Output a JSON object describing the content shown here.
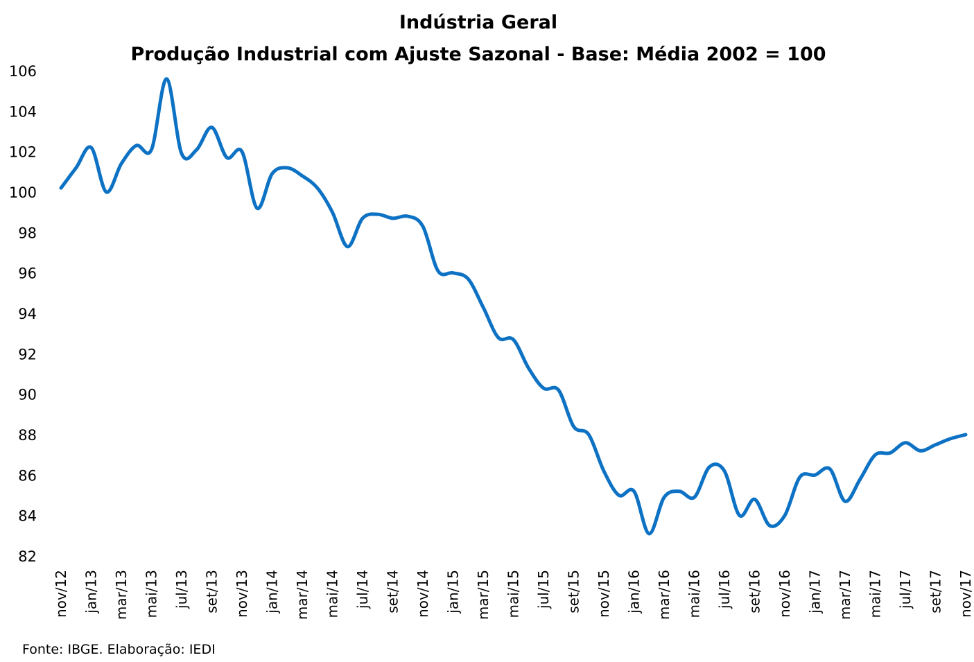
{
  "chart_data": {
    "type": "line",
    "title": "Indústria Geral",
    "subtitle": "Produção Industrial com Ajuste Sazonal - Base: Média 2002 = 100",
    "xlabel": "",
    "ylabel": "",
    "ylim": [
      82,
      106
    ],
    "yticks": [
      82,
      84,
      86,
      88,
      90,
      92,
      94,
      96,
      98,
      100,
      102,
      104,
      106
    ],
    "x_tick_labels": [
      "nov/12",
      "jan/13",
      "mar/13",
      "mai/13",
      "jul/13",
      "set/13",
      "nov/13",
      "jan/14",
      "mar/14",
      "mai/14",
      "jul/14",
      "set/14",
      "nov/14",
      "jan/15",
      "mar/15",
      "mai/15",
      "jul/15",
      "set/15",
      "nov/15",
      "jan/16",
      "mar/16",
      "mai/16",
      "jul/16",
      "set/16",
      "nov/16",
      "jan/17",
      "mar/17",
      "mai/17",
      "jul/17",
      "set/17",
      "nov/17"
    ],
    "grid": false,
    "legend": "none",
    "series": [
      {
        "color": "#0e72c4",
        "x": [
          "nov/12",
          "dez/12",
          "jan/13",
          "fev/13",
          "mar/13",
          "abr/13",
          "mai/13",
          "jun/13",
          "jul/13",
          "ago/13",
          "set/13",
          "out/13",
          "nov/13",
          "dez/13",
          "jan/14",
          "fev/14",
          "mar/14",
          "abr/14",
          "mai/14",
          "jun/14",
          "jul/14",
          "ago/14",
          "set/14",
          "out/14",
          "nov/14",
          "dez/14",
          "jan/15",
          "fev/15",
          "mar/15",
          "abr/15",
          "mai/15",
          "jun/15",
          "jul/15",
          "ago/15",
          "set/15",
          "out/15",
          "nov/15",
          "dez/15",
          "jan/16",
          "fev/16",
          "mar/16",
          "abr/16",
          "mai/16",
          "jun/16",
          "jul/16",
          "ago/16",
          "set/16",
          "out/16",
          "nov/16",
          "dez/16",
          "jan/17",
          "fev/17",
          "mar/17",
          "abr/17",
          "mai/17",
          "jun/17",
          "jul/17",
          "ago/17",
          "set/17",
          "out/17",
          "nov/17"
        ],
        "values": [
          100.2,
          101.2,
          102.2,
          100.0,
          101.4,
          102.3,
          102.1,
          105.6,
          101.9,
          102.1,
          103.2,
          101.7,
          102.0,
          99.2,
          100.9,
          101.2,
          100.8,
          100.2,
          99.0,
          97.3,
          98.7,
          98.9,
          98.7,
          98.8,
          98.3,
          96.1,
          96.0,
          95.7,
          94.3,
          92.8,
          92.7,
          91.3,
          90.3,
          90.2,
          88.4,
          88.0,
          86.2,
          85.0,
          85.2,
          83.1,
          84.9,
          85.2,
          84.9,
          86.4,
          86.2,
          84.0,
          84.8,
          83.5,
          84.0,
          85.9,
          86.0,
          86.3,
          84.7,
          85.8,
          87.0,
          87.1,
          87.6,
          87.2,
          87.5,
          87.8,
          88.0
        ]
      }
    ]
  },
  "source": "Fonte: IBGE. Elaboração: IEDI"
}
